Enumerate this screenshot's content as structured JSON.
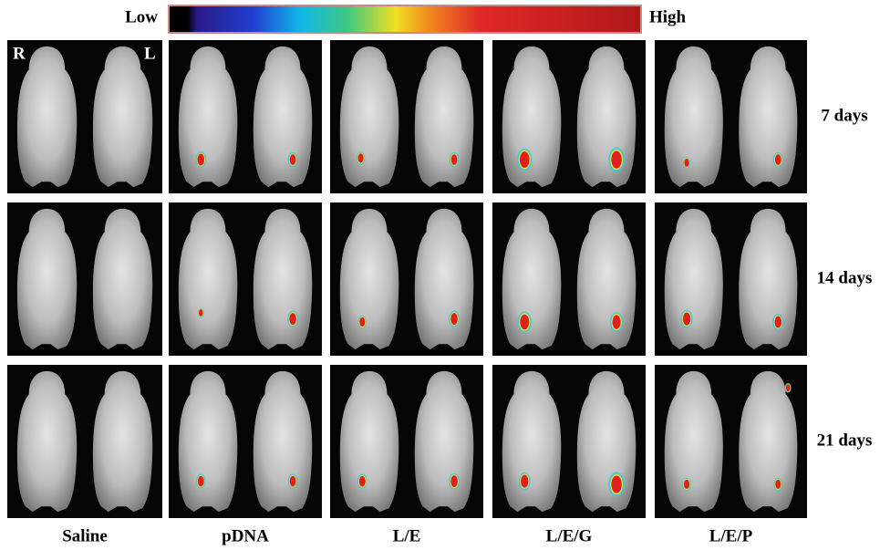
{
  "colorbar": {
    "low": "Low",
    "high": "High"
  },
  "panel_labels": {
    "right": "R",
    "left": "L"
  },
  "rows": [
    "7 days",
    "14 days",
    "21 days"
  ],
  "columns": [
    "Saline",
    "pDNA",
    "L/E",
    "L/E/G",
    "L/E/P"
  ]
}
